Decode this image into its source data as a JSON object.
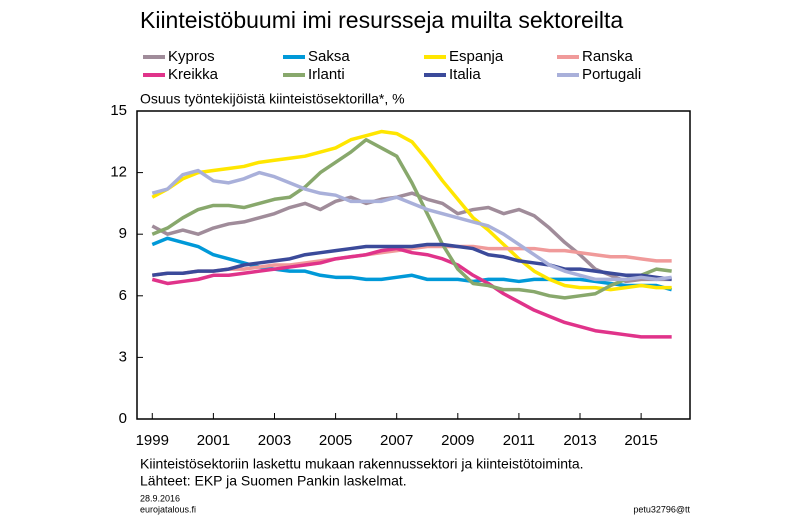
{
  "chart_data": {
    "type": "line",
    "title": "Kiinteistöbuumi imi resursseja muilta sektoreilta",
    "y_label": "Osuus työntekijöistä kiinteistösektorilla*, %",
    "notes": [
      "Kiinteistösektoriin laskettu mukaan rakennussektori ja kiinteistötoiminta.",
      "Lähteet: EKP ja Suomen Pankin laskelmat."
    ],
    "date": "28.9.2016",
    "source_site": "eurojatalous.fi",
    "code": "petu32796@tt",
    "x": [
      1999,
      1999.5,
      2000,
      2000.5,
      2001,
      2001.5,
      2002,
      2002.5,
      2003,
      2003.5,
      2004,
      2004.5,
      2005,
      2005.5,
      2006,
      2006.5,
      2007,
      2007.5,
      2008,
      2008.5,
      2009,
      2009.5,
      2010,
      2010.5,
      2011,
      2011.5,
      2012,
      2012.5,
      2013,
      2013.5,
      2014,
      2014.5,
      2015,
      2015.5,
      2016
    ],
    "xlim": [
      1998.5,
      2016.6
    ],
    "xticks": [
      1999,
      2001,
      2003,
      2005,
      2007,
      2009,
      2011,
      2013,
      2015
    ],
    "ylim": [
      0,
      15
    ],
    "yticks": [
      0,
      3,
      6,
      9,
      12,
      15
    ],
    "grid": false,
    "series": [
      {
        "name": "Kypros",
        "color": "#a08c9a",
        "values": [
          9.4,
          9.0,
          9.2,
          9.0,
          9.3,
          9.5,
          9.6,
          9.8,
          10.0,
          10.3,
          10.5,
          10.2,
          10.6,
          10.8,
          10.5,
          10.7,
          10.8,
          11.0,
          10.7,
          10.5,
          10.0,
          10.2,
          10.3,
          10.0,
          10.2,
          9.9,
          9.3,
          8.6,
          8.0,
          7.3,
          7.0,
          6.7,
          6.8,
          6.8,
          6.8
        ]
      },
      {
        "name": "Saksa",
        "color": "#0099d8",
        "values": [
          8.5,
          8.8,
          8.6,
          8.4,
          8.0,
          7.8,
          7.6,
          7.4,
          7.3,
          7.2,
          7.2,
          7.0,
          6.9,
          6.9,
          6.8,
          6.8,
          6.9,
          7.0,
          6.8,
          6.8,
          6.8,
          6.7,
          6.8,
          6.8,
          6.7,
          6.8,
          6.8,
          6.8,
          6.8,
          6.7,
          6.6,
          6.5,
          6.5,
          6.5,
          6.3
        ]
      },
      {
        "name": "Espanja",
        "color": "#ffe600",
        "values": [
          10.8,
          11.2,
          11.7,
          12.0,
          12.1,
          12.2,
          12.3,
          12.5,
          12.6,
          12.7,
          12.8,
          13.0,
          13.2,
          13.6,
          13.8,
          14.0,
          13.9,
          13.5,
          12.6,
          11.6,
          10.7,
          9.8,
          9.2,
          8.5,
          7.8,
          7.2,
          6.8,
          6.5,
          6.4,
          6.4,
          6.3,
          6.4,
          6.5,
          6.4,
          6.4
        ]
      },
      {
        "name": "Ranska",
        "color": "#f09a9a",
        "values": [
          7.0,
          7.1,
          7.1,
          7.2,
          7.2,
          7.3,
          7.3,
          7.4,
          7.5,
          7.5,
          7.6,
          7.7,
          7.8,
          7.9,
          8.0,
          8.1,
          8.2,
          8.3,
          8.4,
          8.4,
          8.4,
          8.4,
          8.3,
          8.3,
          8.3,
          8.3,
          8.2,
          8.2,
          8.1,
          8.0,
          7.9,
          7.9,
          7.8,
          7.7,
          7.7
        ]
      },
      {
        "name": "Kreikka",
        "color": "#e0338a",
        "values": [
          6.8,
          6.6,
          6.7,
          6.8,
          7.0,
          7.0,
          7.1,
          7.2,
          7.3,
          7.4,
          7.5,
          7.6,
          7.8,
          7.9,
          8.0,
          8.2,
          8.3,
          8.1,
          8.0,
          7.8,
          7.5,
          7.0,
          6.6,
          6.1,
          5.7,
          5.3,
          5.0,
          4.7,
          4.5,
          4.3,
          4.2,
          4.1,
          4.0,
          4.0,
          4.0
        ]
      },
      {
        "name": "Irlanti",
        "color": "#88a86c",
        "values": [
          9.0,
          9.3,
          9.8,
          10.2,
          10.4,
          10.4,
          10.3,
          10.5,
          10.7,
          10.8,
          11.3,
          12.0,
          12.5,
          13.0,
          13.6,
          13.2,
          12.8,
          11.5,
          10.0,
          8.5,
          7.3,
          6.6,
          6.5,
          6.3,
          6.3,
          6.2,
          6.0,
          5.9,
          6.0,
          6.1,
          6.5,
          6.8,
          7.0,
          7.3,
          7.2
        ]
      },
      {
        "name": "Italia",
        "color": "#3b4a9a",
        "values": [
          7.0,
          7.1,
          7.1,
          7.2,
          7.2,
          7.3,
          7.5,
          7.6,
          7.7,
          7.8,
          8.0,
          8.1,
          8.2,
          8.3,
          8.4,
          8.4,
          8.4,
          8.4,
          8.5,
          8.5,
          8.4,
          8.3,
          8.0,
          7.9,
          7.7,
          7.6,
          7.5,
          7.3,
          7.3,
          7.2,
          7.1,
          7.0,
          7.0,
          6.9,
          6.8
        ]
      },
      {
        "name": "Portugali",
        "color": "#a9b0da",
        "values": [
          11.0,
          11.2,
          11.9,
          12.1,
          11.6,
          11.5,
          11.7,
          12.0,
          11.8,
          11.5,
          11.2,
          11.0,
          10.9,
          10.6,
          10.6,
          10.6,
          10.8,
          10.5,
          10.2,
          10.0,
          9.8,
          9.6,
          9.4,
          9.0,
          8.5,
          8.0,
          7.5,
          7.2,
          7.0,
          6.8,
          6.8,
          6.8,
          6.9,
          6.8,
          6.9
        ]
      }
    ]
  }
}
